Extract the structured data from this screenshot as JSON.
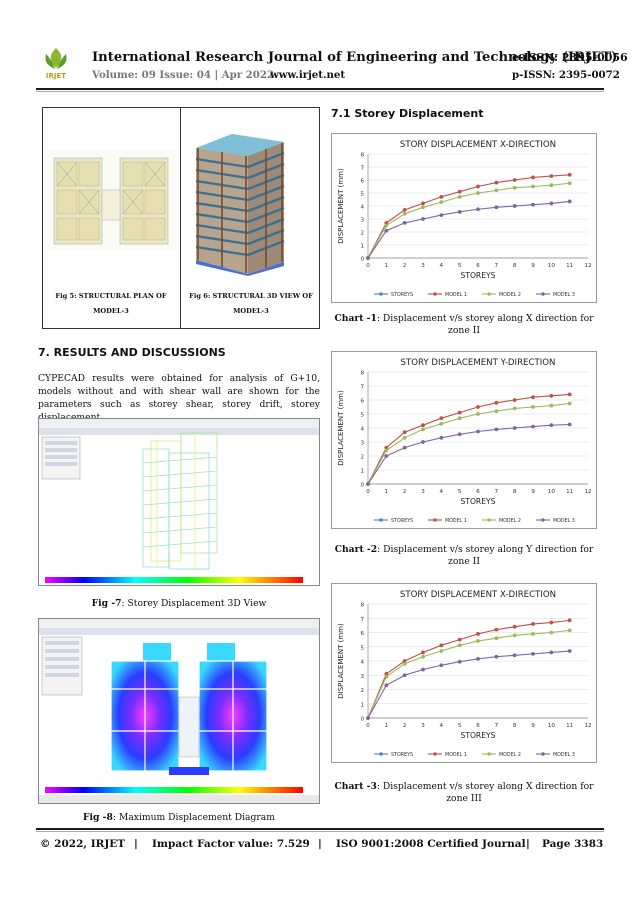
{
  "header": {
    "journal_title": "International Research Journal of Engineering and Technology (IRJET)",
    "eissn": "e-ISSN: 2395-0056",
    "volume": "Volume: 09 Issue: 04 | Apr 2022",
    "website": "www.irjet.net",
    "pissn": "p-ISSN: 2395-0072",
    "logo_text": "IRJET"
  },
  "figures": {
    "fig5_caption_1": "Fig 5: STRUCTURAL PLAN OF",
    "fig5_caption_2": "MODEL-3",
    "fig6_caption_1": "Fig 6: STRUCTURAL 3D VIEW OF",
    "fig6_caption_2": "MODEL-3",
    "fig7_label": "Fig -7",
    "fig7_text": ": Storey Displacement 3D View",
    "fig8_label": "Fig -8",
    "fig8_text": ": Maximum Displacement Diagram"
  },
  "section7": {
    "heading": "7. RESULTS AND DISCUSSIONS",
    "paragraph": "CYPECAD results were obtained for analysis of G+10, models without and with shear wall are shown for the parameters such as storey shear, storey drift, storey displacement."
  },
  "section71": {
    "heading": "7.1 Storey Displacement"
  },
  "captions": {
    "chart1_label": "Chart -1",
    "chart1_line1": ": Displacement v/s storey along X direction for",
    "chart1_line2": "zone II",
    "chart2_label": "Chart -2",
    "chart2_line1": ": Displacement v/s storey along Y direction for",
    "chart2_line2": "zone II",
    "chart3_label": "Chart -3",
    "chart3_line1": ": Displacement v/s storey along X direction for",
    "chart3_line2": "zone III"
  },
  "footer": {
    "copyright": "© 2022, IRJET",
    "sep": "|",
    "impact": "Impact Factor value: 7.529",
    "iso": "ISO 9001:2008 Certified Journal",
    "page": "Page 3383"
  },
  "colors": {
    "model1": "#c0504d",
    "model2": "#9bbb59",
    "model3": "#8064a2",
    "storeys": "#4f81bd"
  },
  "chart_data": [
    {
      "type": "line",
      "title": "STORY DISPLACEMENT X-DIRECTION",
      "xlabel": "STOREYS",
      "ylabel": "DISPLACEMENT (mm)",
      "xlim": [
        0,
        12
      ],
      "ylim": [
        0,
        8
      ],
      "xticks": [
        "0",
        "1",
        "2",
        "3",
        "4",
        "5",
        "6",
        "7",
        "8",
        "9",
        "10",
        "11",
        "12"
      ],
      "yticks": [
        "0",
        "1",
        "2",
        "3",
        "4",
        "5",
        "6",
        "7",
        "8"
      ],
      "x": [
        0,
        1,
        2,
        3,
        4,
        5,
        6,
        7,
        8,
        9,
        10,
        11
      ],
      "legend": [
        "STOREYS",
        "MODEL 1",
        "MODEL 2",
        "MODEL 3"
      ],
      "legend_position": "bottom",
      "grid": true,
      "series": [
        {
          "name": "MODEL 1",
          "values": [
            0,
            2.7,
            3.7,
            4.2,
            4.7,
            5.1,
            5.5,
            5.8,
            6.0,
            6.2,
            6.3,
            6.4
          ]
        },
        {
          "name": "MODEL 2",
          "values": [
            0,
            2.5,
            3.4,
            3.9,
            4.3,
            4.7,
            5.0,
            5.2,
            5.4,
            5.5,
            5.6,
            5.75
          ]
        },
        {
          "name": "MODEL 3",
          "values": [
            0,
            2.1,
            2.7,
            3.0,
            3.3,
            3.55,
            3.75,
            3.9,
            4.0,
            4.1,
            4.2,
            4.35
          ]
        }
      ]
    },
    {
      "type": "line",
      "title": "STORY DISPLACEMENT Y-DIRECTION",
      "xlabel": "STOREYS",
      "ylabel": "DISPLACEMENT (mm)",
      "xlim": [
        0,
        12
      ],
      "ylim": [
        0,
        8
      ],
      "xticks": [
        "0",
        "1",
        "2",
        "3",
        "4",
        "5",
        "6",
        "7",
        "8",
        "9",
        "10",
        "11",
        "12"
      ],
      "yticks": [
        "0",
        "1",
        "2",
        "3",
        "4",
        "5",
        "6",
        "7",
        "8"
      ],
      "x": [
        0,
        1,
        2,
        3,
        4,
        5,
        6,
        7,
        8,
        9,
        10,
        11
      ],
      "legend": [
        "STOREYS",
        "MODEL 1",
        "MODEL 2",
        "MODEL 3"
      ],
      "legend_position": "bottom",
      "grid": true,
      "series": [
        {
          "name": "MODEL 1",
          "values": [
            0,
            2.6,
            3.7,
            4.2,
            4.7,
            5.1,
            5.5,
            5.8,
            6.0,
            6.2,
            6.3,
            6.4
          ]
        },
        {
          "name": "MODEL 2",
          "values": [
            0,
            2.4,
            3.3,
            3.9,
            4.3,
            4.7,
            5.0,
            5.2,
            5.4,
            5.5,
            5.6,
            5.75
          ]
        },
        {
          "name": "MODEL 3",
          "values": [
            0,
            2.0,
            2.6,
            3.0,
            3.3,
            3.55,
            3.75,
            3.9,
            4.0,
            4.1,
            4.2,
            4.25
          ]
        }
      ]
    },
    {
      "type": "line",
      "title": "STORY DISPLACEMENT X-DIRECTION",
      "xlabel": "STOREYS",
      "ylabel": "DISPLACEMENT (mm)",
      "xlim": [
        0,
        12
      ],
      "ylim": [
        0,
        8
      ],
      "xticks": [
        "0",
        "1",
        "2",
        "3",
        "4",
        "5",
        "6",
        "7",
        "8",
        "9",
        "10",
        "11",
        "12"
      ],
      "yticks": [
        "0",
        "1",
        "2",
        "3",
        "4",
        "5",
        "6",
        "7",
        "8"
      ],
      "x": [
        0,
        1,
        2,
        3,
        4,
        5,
        6,
        7,
        8,
        9,
        10,
        11
      ],
      "legend": [
        "STOREYS",
        "MODEL 1",
        "MODEL 2",
        "MODEL 3"
      ],
      "legend_position": "bottom",
      "grid": true,
      "series": [
        {
          "name": "MODEL 1",
          "values": [
            0,
            3.1,
            4.0,
            4.6,
            5.1,
            5.5,
            5.9,
            6.2,
            6.4,
            6.6,
            6.7,
            6.85
          ]
        },
        {
          "name": "MODEL 2",
          "values": [
            0,
            2.9,
            3.8,
            4.3,
            4.7,
            5.1,
            5.4,
            5.6,
            5.8,
            5.9,
            6.0,
            6.15
          ]
        },
        {
          "name": "MODEL 3",
          "values": [
            0,
            2.3,
            3.0,
            3.4,
            3.7,
            3.95,
            4.15,
            4.3,
            4.4,
            4.5,
            4.6,
            4.7
          ]
        }
      ]
    }
  ]
}
